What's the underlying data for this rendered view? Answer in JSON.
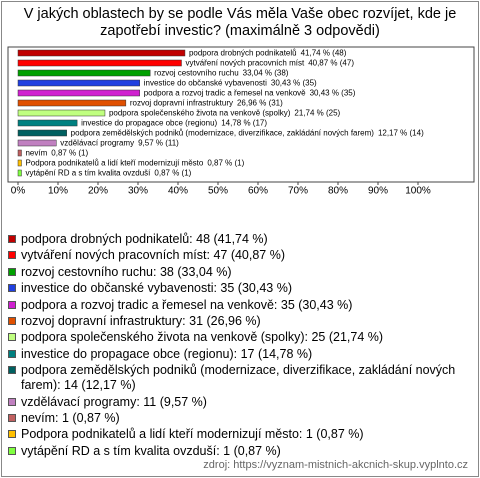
{
  "chart_data": {
    "type": "hbar",
    "title": "V jakých oblastech by se podle Vás měla Vaše obec rozvíjet, kde je zapotřebí investic? (maximálně 3 odpovědi)",
    "categories": [
      "podpora drobných podnikatelů",
      "vytváření nových pracovních míst",
      "rozvoj cestovního ruchu",
      "investice do občanské vybavenosti",
      "podpora a rozvoj tradic a řemesel na venkově",
      "rozvoj dopravní infrastruktury",
      "podpora společenského života na venkově (spolky)",
      "investice do propagace obce (regionu)",
      "podpora zemědělských podniků (modernizace, diverzifikace, zakládání nových farem)",
      "vzdělávací programy",
      "nevím",
      "Podpora podnikatelů a lidí kteří modernizují město",
      "vytápění RD a s tím kvalita ovzduší"
    ],
    "values": [
      41.74,
      40.87,
      33.04,
      30.43,
      30.43,
      26.96,
      21.74,
      14.78,
      12.17,
      9.57,
      0.87,
      0.87,
      0.87
    ],
    "value_labels": [
      "41,74 % (48)",
      "40,87 % (47)",
      "33,04 % (38)",
      "30,43 % (35)",
      "30,43 % (35)",
      "26,96 % (31)",
      "21,74 % (25)",
      "14,78 % (17)",
      "12,17 % (14)",
      "9,57 % (11)",
      "0,87 % (1)",
      "0,87 % (1)",
      "0,87 % (1)"
    ],
    "colors": [
      "#c00000",
      "#ff0000",
      "#00a000",
      "#2040e0",
      "#d020d0",
      "#e05000",
      "#c0ff80",
      "#008080",
      "#006060",
      "#c080c0",
      "#c06060",
      "#ffc000",
      "#80ff40"
    ],
    "legend_labels": [
      "podpora drobných podnikatelů: 48 (41,74 %)",
      "vytváření nových pracovních míst: 47 (40,87 %)",
      "rozvoj cestovního ruchu: 38 (33,04 %)",
      "investice do občanské vybavenosti: 35 (30,43 %)",
      "podpora a rozvoj tradic a řemesel na venkově: 35 (30,43 %)",
      "rozvoj dopravní infrastruktury: 31 (26,96 %)",
      "podpora společenského života na venkově (spolky): 25 (21,74 %)",
      "investice do propagace obce (regionu): 17 (14,78 %)",
      "podpora zemědělských podniků (modernizace, diverzifikace, zakládání nových farem): 14 (12,17 %)",
      "vzdělávací programy: 11 (9,57 %)",
      "nevím: 1 (0,87 %)",
      "Podpora podnikatelů a lidí kteří modernizují město: 1 (0,87 %)",
      "vytápění RD a s tím kvalita ovzduší: 1 (0,87 %)"
    ],
    "xlim": [
      0,
      100
    ],
    "xticks": [
      {
        "value": 0,
        "label": "0%"
      },
      {
        "value": 10,
        "label": "10%"
      },
      {
        "value": 20,
        "label": "20%"
      },
      {
        "value": 30,
        "label": "30%"
      },
      {
        "value": 40,
        "label": "40%"
      },
      {
        "value": 50,
        "label": "50%"
      },
      {
        "value": 60,
        "label": "60%"
      },
      {
        "value": 70,
        "label": "70%"
      },
      {
        "value": 80,
        "label": "80%"
      },
      {
        "value": 90,
        "label": "90%"
      },
      {
        "value": 100,
        "label": "100%"
      }
    ],
    "source": "zdroj: https://vyznam-mistnich-akcnich-skup.vyplnto.cz"
  }
}
